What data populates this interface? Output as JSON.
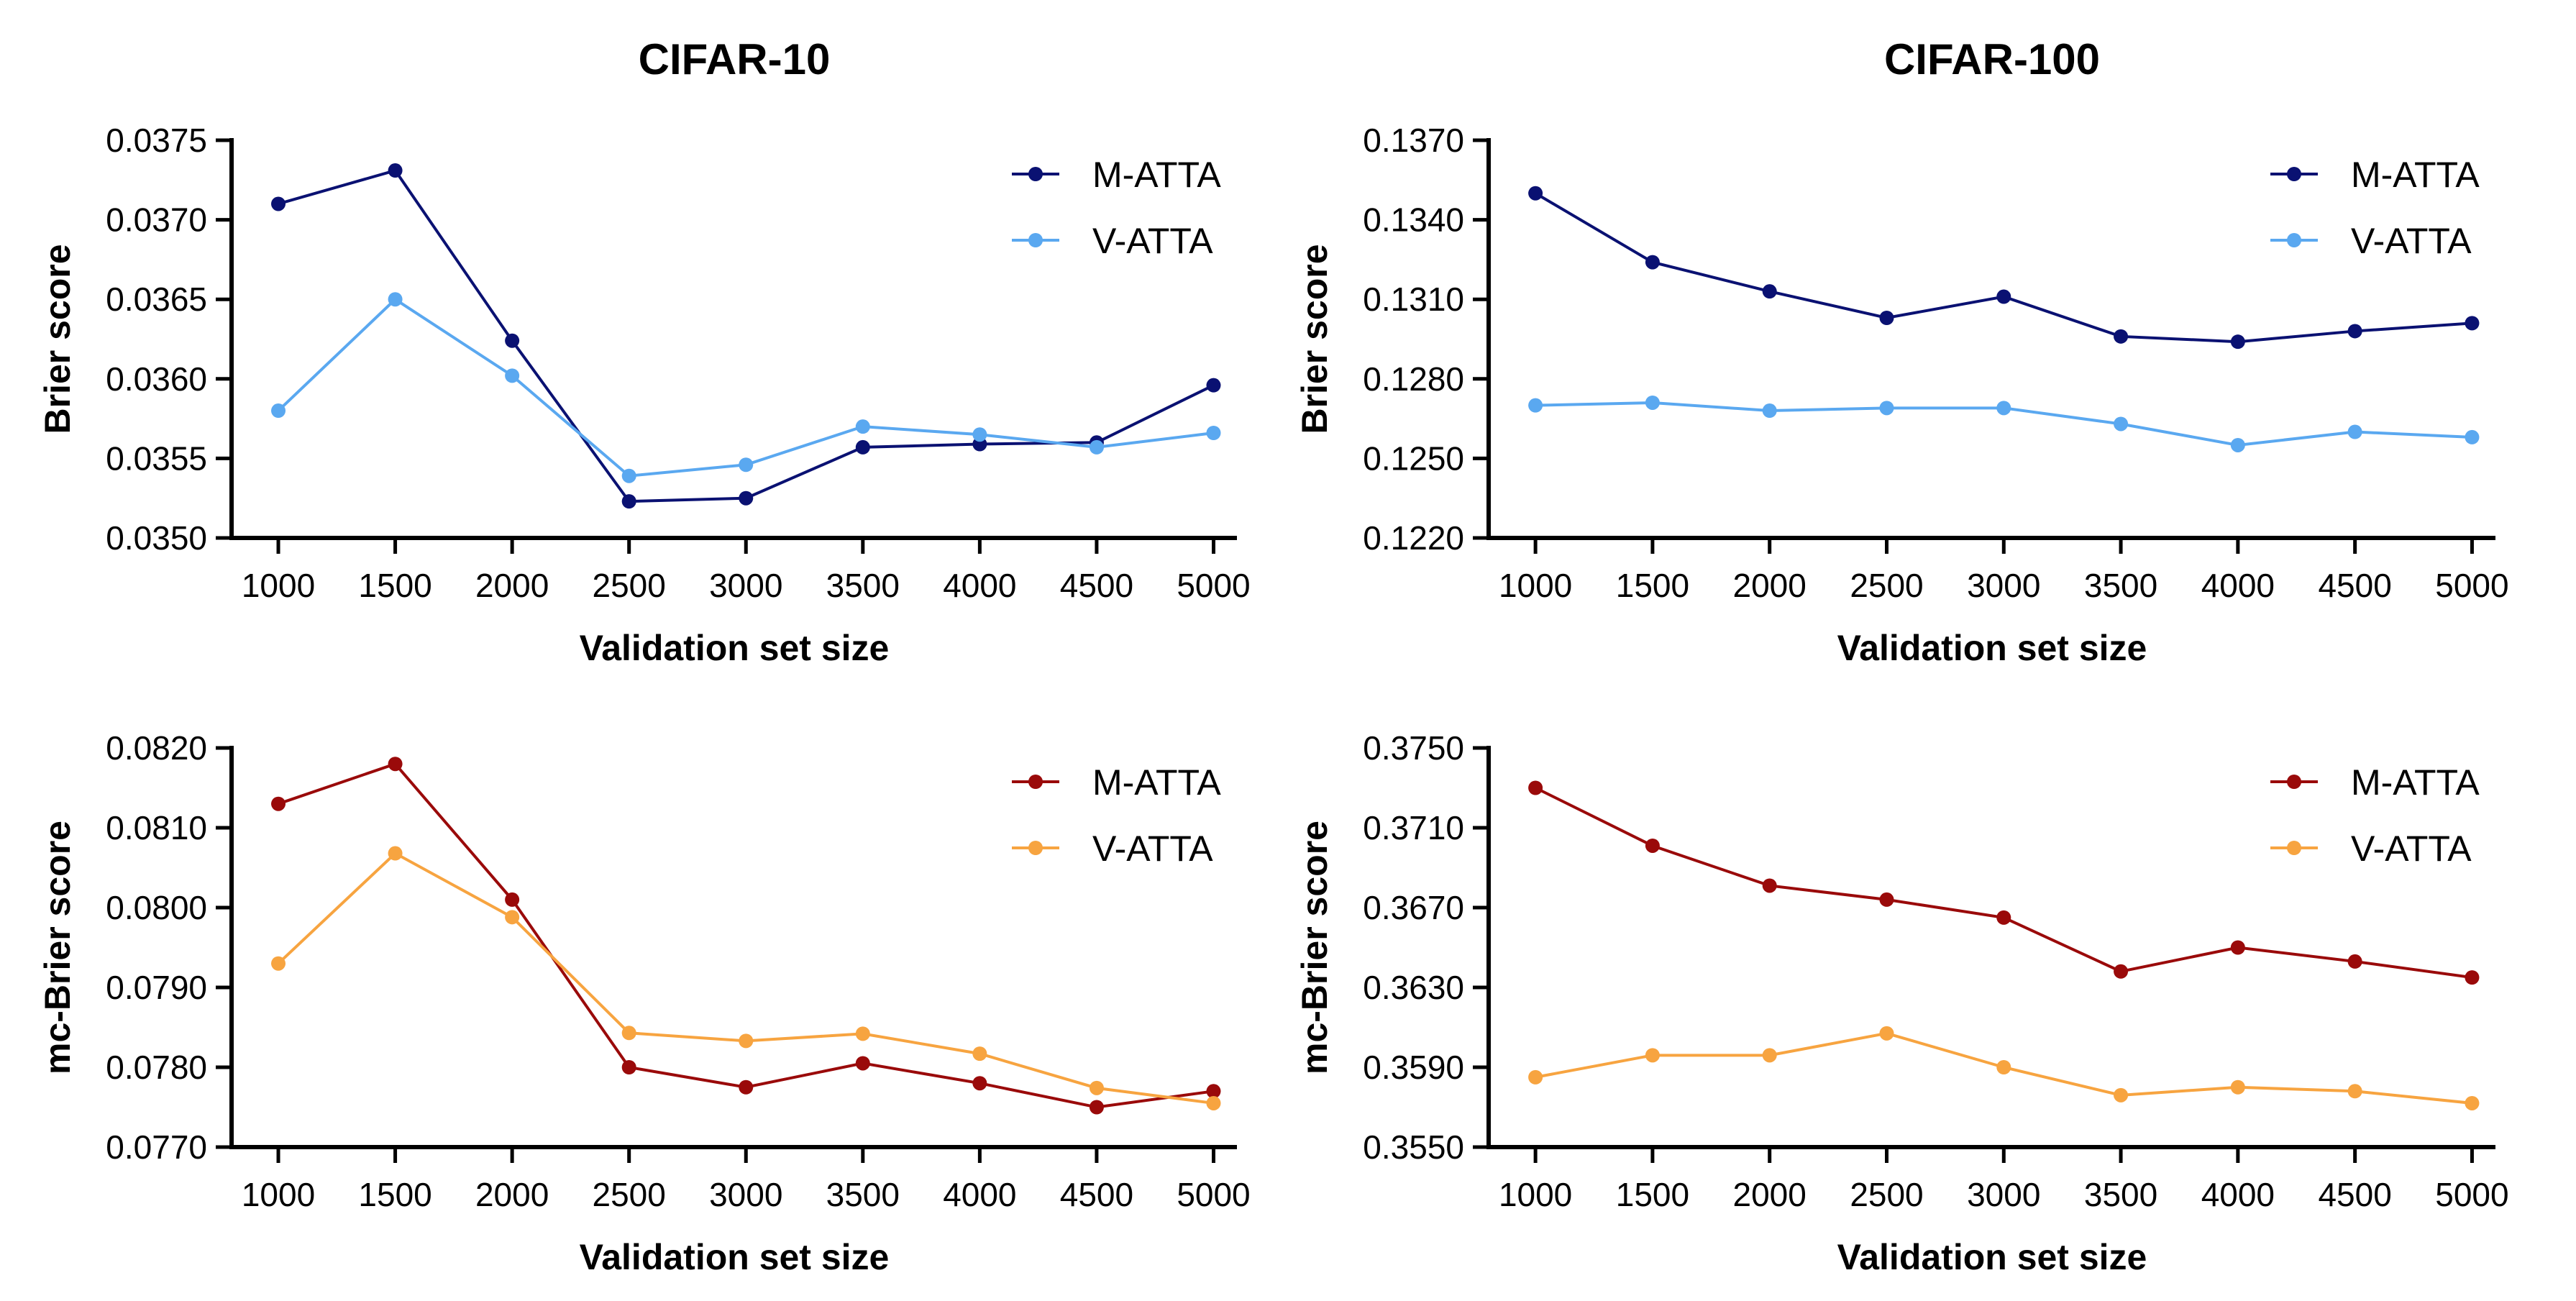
{
  "chart_data": [
    {
      "type": "line",
      "title": "CIFAR-10",
      "xlabel": "Validation set size",
      "ylabel": "Brier score",
      "x": [
        1000,
        1500,
        2000,
        2500,
        3000,
        3500,
        4000,
        4500,
        5000
      ],
      "xlim": [
        800,
        5100
      ],
      "ylim": [
        0.035,
        0.0375
      ],
      "yticks": [
        "0.0350",
        "0.0355",
        "0.0360",
        "0.0365",
        "0.0370",
        "0.0375"
      ],
      "legend_position": "top-right",
      "grid": false,
      "series": [
        {
          "name": "M-ATTA",
          "color": "#0a1172",
          "values": [
            0.0371,
            0.03731,
            0.03624,
            0.03523,
            0.03525,
            0.03557,
            0.03559,
            0.0356,
            0.03596
          ]
        },
        {
          "name": "V-ATTA",
          "color": "#5aa8f0",
          "values": [
            0.0358,
            0.0365,
            0.03602,
            0.03539,
            0.03546,
            0.0357,
            0.03565,
            0.03557,
            0.03566
          ]
        }
      ]
    },
    {
      "type": "line",
      "title": "CIFAR-100",
      "xlabel": "Validation set size",
      "ylabel": "Brier score",
      "x": [
        1000,
        1500,
        2000,
        2500,
        3000,
        3500,
        4000,
        4500,
        5000
      ],
      "xlim": [
        800,
        5100
      ],
      "ylim": [
        0.122,
        0.137
      ],
      "yticks": [
        "0.1220",
        "0.1250",
        "0.1280",
        "0.1310",
        "0.1340",
        "0.1370"
      ],
      "legend_position": "top-right",
      "grid": false,
      "series": [
        {
          "name": "M-ATTA",
          "color": "#0a1172",
          "values": [
            0.135,
            0.1324,
            0.1313,
            0.1303,
            0.1311,
            0.1296,
            0.1294,
            0.1298,
            0.1301
          ]
        },
        {
          "name": "V-ATTA",
          "color": "#5aa8f0",
          "values": [
            0.127,
            0.1271,
            0.1268,
            0.1269,
            0.1269,
            0.1263,
            0.1255,
            0.126,
            0.1258
          ]
        }
      ]
    },
    {
      "type": "line",
      "title": "",
      "xlabel": "Validation set size",
      "ylabel": "mc-Brier score",
      "x": [
        1000,
        1500,
        2000,
        2500,
        3000,
        3500,
        4000,
        4500,
        5000
      ],
      "xlim": [
        800,
        5100
      ],
      "ylim": [
        0.077,
        0.082
      ],
      "yticks": [
        "0.0770",
        "0.0780",
        "0.0790",
        "0.0800",
        "0.0810",
        "0.0820"
      ],
      "legend_position": "top-right",
      "grid": false,
      "series": [
        {
          "name": "M-ATTA",
          "color": "#9a0a0a",
          "values": [
            0.0813,
            0.0818,
            0.0801,
            0.078,
            0.07775,
            0.07805,
            0.0778,
            0.0775,
            0.0777
          ]
        },
        {
          "name": "V-ATTA",
          "color": "#f7a440",
          "values": [
            0.0793,
            0.08068,
            0.07988,
            0.07843,
            0.07833,
            0.07842,
            0.07817,
            0.07774,
            0.07755
          ]
        }
      ]
    },
    {
      "type": "line",
      "title": "",
      "xlabel": "Validation set size",
      "ylabel": "mc-Brier score",
      "x": [
        1000,
        1500,
        2000,
        2500,
        3000,
        3500,
        4000,
        4500,
        5000
      ],
      "xlim": [
        800,
        5100
      ],
      "ylim": [
        0.355,
        0.375
      ],
      "yticks": [
        "0.3550",
        "0.3590",
        "0.3630",
        "0.3670",
        "0.3710",
        "0.3750"
      ],
      "legend_position": "top-right",
      "grid": false,
      "series": [
        {
          "name": "M-ATTA",
          "color": "#9a0a0a",
          "values": [
            0.373,
            0.3701,
            0.3681,
            0.3674,
            0.3665,
            0.3638,
            0.365,
            0.3643,
            0.3635
          ]
        },
        {
          "name": "V-ATTA",
          "color": "#f7a440",
          "values": [
            0.3585,
            0.3596,
            0.3596,
            0.3607,
            0.359,
            0.3576,
            0.358,
            0.3578,
            0.3572
          ]
        }
      ]
    }
  ]
}
